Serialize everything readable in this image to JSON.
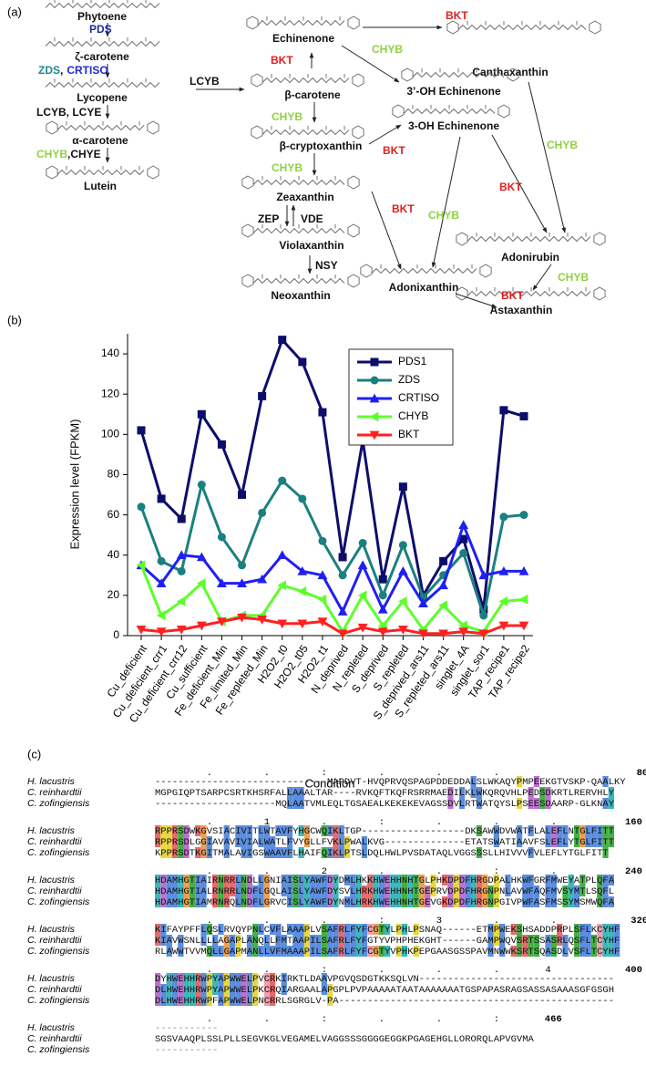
{
  "panel_labels": [
    "(a)",
    "(b)",
    "(c)"
  ],
  "pathway": {
    "compounds": [
      "Phytoene",
      "ζ-carotene",
      "Lycopene",
      "α-carotene",
      "Lutein",
      "Echinenone",
      "β-carotene",
      "β-cryptoxanthin",
      "Zeaxanthin",
      "Violaxanthin",
      "Neoxanthin",
      "Canthaxanthin",
      "3’-OH Echinenone",
      "3-OH Echinenone",
      "Adonirubin",
      "Adonixanthin",
      "Astaxanthin"
    ],
    "enzymes": [
      {
        "parts": [
          {
            "text": "PDS",
            "color": "#1f2a9c"
          }
        ]
      },
      {
        "parts": [
          {
            "text": "ZDS",
            "color": "#1a8a8a"
          },
          {
            "text": ",",
            "color": "#111111"
          },
          {
            "text": "CRTISO",
            "color": "#1f2ad0"
          }
        ]
      },
      {
        "parts": [
          {
            "text": "LCYB, LCYE",
            "color": "#111111"
          }
        ]
      },
      {
        "parts": [
          {
            "text": "CHYB",
            "color": "#8fd13f"
          },
          {
            "text": ",CHYE",
            "color": "#111111"
          }
        ]
      },
      {
        "parts": [
          {
            "text": "LCYB",
            "color": "#111111"
          }
        ]
      },
      {
        "parts": [
          {
            "text": "BKT",
            "color": "#e02020"
          }
        ]
      },
      {
        "parts": [
          {
            "text": "CHYB",
            "color": "#8fd13f"
          }
        ]
      },
      {
        "parts": [
          {
            "text": "CHYB",
            "color": "#8fd13f"
          }
        ]
      },
      {
        "parts": [
          {
            "text": "ZEP",
            "color": "#111111"
          }
        ]
      },
      {
        "parts": [
          {
            "text": "VDE",
            "color": "#111111"
          }
        ]
      },
      {
        "parts": [
          {
            "text": "NSY",
            "color": "#111111"
          }
        ]
      },
      {
        "parts": [
          {
            "text": "BKT",
            "color": "#e02020"
          }
        ]
      },
      {
        "parts": [
          {
            "text": "CHYB",
            "color": "#8fd13f"
          }
        ]
      },
      {
        "parts": [
          {
            "text": "BKT",
            "color": "#e02020"
          }
        ]
      },
      {
        "parts": [
          {
            "text": "CHYB",
            "color": "#8fd13f"
          }
        ]
      },
      {
        "parts": [
          {
            "text": "BKT",
            "color": "#e02020"
          }
        ]
      },
      {
        "parts": [
          {
            "text": "CHYB",
            "color": "#8fd13f"
          }
        ]
      },
      {
        "parts": [
          {
            "text": "BKT",
            "color": "#e02020"
          }
        ]
      },
      {
        "parts": [
          {
            "text": "CHYB",
            "color": "#8fd13f"
          }
        ]
      },
      {
        "parts": [
          {
            "text": "BKT",
            "color": "#e02020"
          }
        ]
      }
    ]
  },
  "chart_data": {
    "type": "line",
    "x_label": "Condition",
    "y_label": "Expression level (FPKM)",
    "categories": [
      "Cu_deficient",
      "Cu_deficient_crr1",
      "Cu_deficient_crr12",
      "Cu_sufficient",
      "Fe_deficient_Min",
      "Fe_limited_Min",
      "Fe_repleted_Min",
      "H2O2_t0",
      "H2O2_t05",
      "H2O2_t1",
      "N_deprived",
      "N_repleted",
      "S_deprived",
      "S_repleted",
      "S_deprived_ars11",
      "S_repleted_ars11",
      "singlet_4A",
      "singlet_sor1",
      "TAP_recipe1",
      "TAP_recipe2"
    ],
    "series": [
      {
        "name": "PDS1",
        "color": "#0d0d6b",
        "marker": "square",
        "values": [
          102,
          68,
          58,
          110,
          95,
          70,
          119,
          147,
          136,
          111,
          39,
          97,
          28,
          74,
          20,
          37,
          48,
          13,
          112,
          109
        ]
      },
      {
        "name": "ZDS",
        "color": "#1b8080",
        "marker": "circle",
        "values": [
          64,
          37,
          32,
          75,
          49,
          35,
          61,
          77,
          68,
          47,
          30,
          46,
          20,
          45,
          19,
          30,
          41,
          10,
          59,
          60
        ]
      },
      {
        "name": "CRTISO",
        "color": "#1f1ff5",
        "marker": "triangle-up",
        "values": [
          35,
          26,
          40,
          39,
          26,
          26,
          28,
          40,
          32,
          30,
          12,
          35,
          13,
          32,
          16,
          25,
          55,
          30,
          32,
          32
        ]
      },
      {
        "name": "CHYB",
        "color": "#5cff2a",
        "marker": "triangle-left",
        "values": [
          35,
          10,
          17,
          26,
          7,
          10,
          10,
          25,
          22,
          18,
          2,
          20,
          5,
          17,
          3,
          15,
          5,
          2,
          17,
          18
        ]
      },
      {
        "name": "BKT",
        "color": "#ff2020",
        "marker": "triangle-down",
        "values": [
          3,
          2,
          3,
          5,
          7,
          9,
          8,
          6,
          6,
          7,
          1,
          4,
          2,
          3,
          1,
          1,
          2,
          1,
          5,
          5
        ]
      }
    ],
    "ylim": [
      0,
      150
    ],
    "yticks": [
      0,
      20,
      40,
      60,
      80,
      100,
      120,
      140
    ],
    "legend": "top-right"
  },
  "alignment": {
    "names": [
      "H. lacustris",
      "C. reinhardtii",
      "C. zofingiensis"
    ],
    "blocks": [
      {
        "markers": "         .         .         :         .         .         .",
        "end": "80",
        "sequences": [
          "------------------------------MAPDVT-HVQPRVQSPAGPDDEDDALSLWKAQYPMPEEKGTVSKP-QAALKY",
          "MGPGIQPTSARPCSRTKHSRFALLAAALTAR----RVKQFTKQFRSRRMAEDILKLWKQRQVHLPEDSDKRTLRERVHLY",
          "---------------------MQLAATVMLEQLTGSAEALKEKEKEVAGSSDVLRTWATQYSLPSEESDAARP-GLKNAY"
        ]
      },
      {
        "markers": "         .         1         .         :         .         .         .",
        "end": "160",
        "sequences": [
          "RPPRSDWKGVSIACIVITLWTAVFYHGCWQIKLTGP------------------DKSAWWDVWATFLALEFLNTGLFITT",
          "RPPRSDLGGIAVAVIVIALWATLFVYGLLFVKLPWALKVG--------------ETATSWATIAAVFSLEFLYTGLFITT",
          "KPPRSDTKGITMALAVIGSWAAVFLHAIFQIKLPTSLDQLHWLPVSDATAQLVGGSSSLLHIVVVFVLEFLYTGLFITT"
        ]
      },
      {
        "markers": "         .         .         2         .         .         :         .",
        "end": "240",
        "sequences": [
          "HDAMHGTIAIRNRRLNDLLGNIAISLYAWFDYDMLHKKHWEHHNHTGLPHKDPDFHRGDPALHKWFGRFMWEYATPLQFA",
          "HDAMHGTIALRNRRLNDFLGQLAISLYAWFDYSVLHRKHWEHHNHTGEPRVDPDFHRGNPNLAVWFAQFMVSYMTLSQFL",
          "HDAMHGTIAMRNRQLNDFLGRVCISLYAWFDYNMLHRKHWEHHNHTGEVGKDPDFHRGNPGIVPWFASFMSSYMSMWQFA"
        ]
      },
      {
        "markers": "         .         .         .         :         3         .         .",
        "end": "320",
        "sequences": [
          "KIFAYPFFLQSLRVQYPNLCVFLAAAPLVSAFRLFYFCGTYLPHLPSNAQ------ETMPWEKSHSADDPRPLSFLKCYHF",
          "KIAVWSNLLLLAGAPLANQLLFMTAAPILSAFRLFYFGTYVPHPHEKGHT------GAMPWQVSRTSSASRLQSFLTCYHF",
          "RLAWWTVVMQLLGAPMANLLVFMAAAPILSAFRLFYFCGTYVPHKPEPGAASGSSPAVMNWWKSRTSQASDLVSFLTCYHF"
        ]
      },
      {
        "markers": "         .         .         :         .         .         .        4",
        "end": "400",
        "sequences": [
          "DYHWEHHRWPYAPWWELPVCRKIRKTLDAAVPGVQSDGTKKSQLVN----------------------------------",
          "DLHWEHHRWPYAPWWELPKCRQIARGAALAPGPLPVPAAAAATAATAAAAAAATGSPAPASRAGSASSASAAASGFGSGH",
          "DLHWEHHRWPFAPWWELPNCRRLSGRGLV-PA------------------------------------------------"
        ]
      },
      {
        "markers": "         .         .         :         .         .         :",
        "end": "466",
        "sequences": [
          "-----------",
          "SGSVAAQPLSSLPLLSEGVKGLVEGAMELVAGGSSSGGGGEGGKPGAGEHGLLORORQLAPVGVMA",
          "-----------"
        ]
      }
    ]
  }
}
